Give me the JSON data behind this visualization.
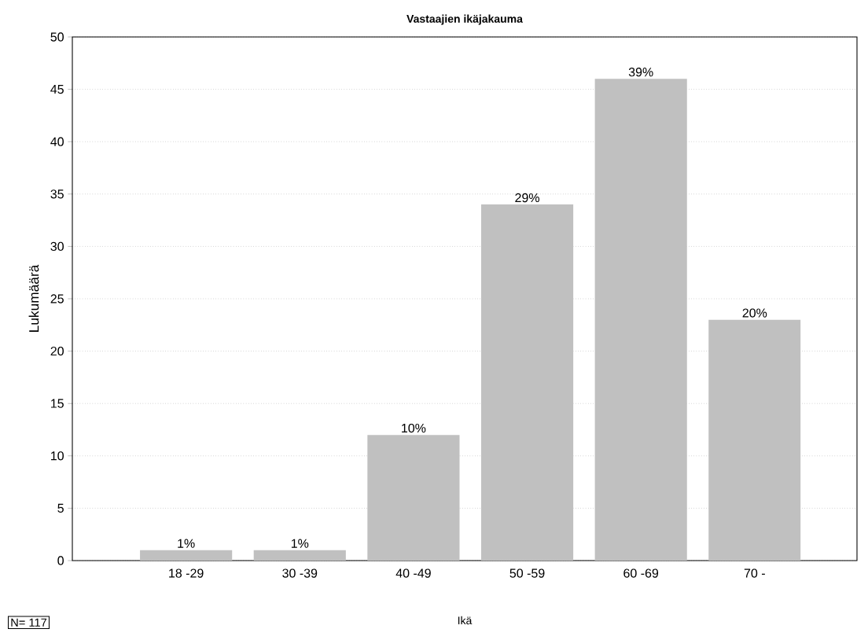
{
  "chart_data": {
    "type": "bar",
    "title": "Vastaajien ikäjakauma",
    "xlabel": "Ikä",
    "ylabel": "Lukumäärä",
    "categories": [
      "18 -29",
      "30 -39",
      "40 -49",
      "50 -59",
      "60 -69",
      "70 -"
    ],
    "values": [
      1,
      1,
      12,
      34,
      46,
      23
    ],
    "color": "#c0c0c0",
    "ylim": [
      0,
      50
    ],
    "yticks": [
      0,
      5,
      10,
      15,
      20,
      25,
      30,
      35,
      40,
      45,
      50
    ],
    "grid": "y",
    "annotations": [
      {
        "text": "1%",
        "x": "18 -29",
        "y": 1
      },
      {
        "text": "1%",
        "x": "30 -39",
        "y": 1
      },
      {
        "text": "10%",
        "x": "40 -49",
        "y": 12
      },
      {
        "text": "29%",
        "x": "50 -59",
        "y": 34
      },
      {
        "text": "39%",
        "x": "60 -69",
        "y": 46
      },
      {
        "text": "20%",
        "x": "70 -",
        "y": 23
      },
      "N= 117"
    ]
  }
}
